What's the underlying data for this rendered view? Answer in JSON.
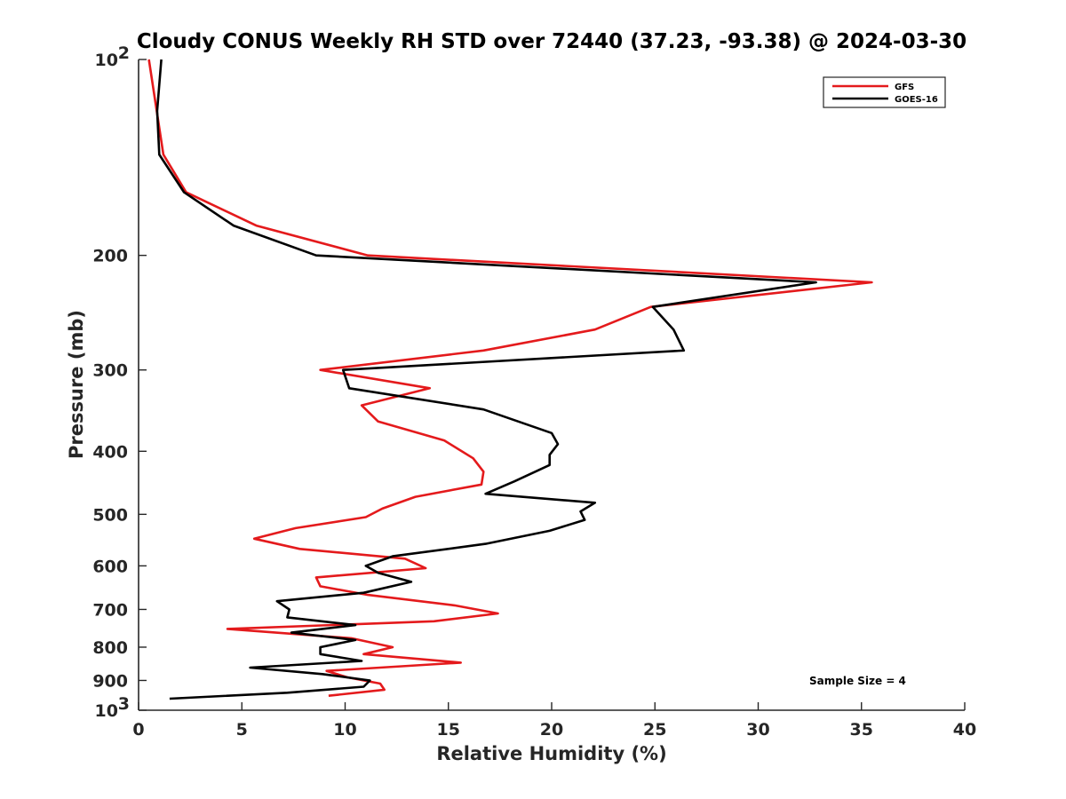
{
  "chart_data": {
    "type": "line",
    "title": "Cloudy CONUS Weekly RH STD over 72440 (37.23, -93.38) @ 2024-03-30",
    "xlabel": "Relative Humidity (%)",
    "ylabel": "Pressure (mb)",
    "xlim": [
      0,
      40
    ],
    "ylim": [
      100,
      1000
    ],
    "y_scale": "log",
    "y_reversed": true,
    "x_ticks": [
      0,
      5,
      10,
      15,
      20,
      25,
      30,
      35,
      40
    ],
    "y_ticks": [
      100,
      200,
      300,
      400,
      500,
      600,
      700,
      800,
      900,
      1000
    ],
    "y_tick_labels": {
      "100": "10",
      "1000": "10"
    },
    "y_tick_exponents": {
      "100": "2",
      "1000": "3"
    },
    "legend": {
      "position": "top-right",
      "entries": [
        "GFS",
        "GOES-16"
      ]
    },
    "annotation": "Sample Size = 4",
    "series": [
      {
        "name": "GFS",
        "color": "#e41a1c",
        "x": [
          0.5,
          1.2,
          2.3,
          5.7,
          11.1,
          35.5,
          24.8,
          22.1,
          16.7,
          8.8,
          14.1,
          10.8,
          11.6,
          14.8,
          16.2,
          16.7,
          16.6,
          13.4,
          11.8,
          11.0,
          7.6,
          5.6,
          7.8,
          12.9,
          13.9,
          8.6,
          8.8,
          11.1,
          15.3,
          17.4,
          14.3,
          4.3,
          10.3,
          12.3,
          10.9,
          15.6,
          9.1,
          10.1,
          11.7,
          11.9,
          9.2
        ],
        "y": [
          100,
          140,
          160,
          180,
          200,
          220,
          240,
          260,
          280,
          300,
          320,
          340,
          360,
          385,
          410,
          430,
          450,
          470,
          490,
          505,
          525,
          545,
          565,
          585,
          605,
          625,
          645,
          665,
          690,
          710,
          730,
          750,
          775,
          800,
          820,
          845,
          870,
          890,
          910,
          930,
          950
        ]
      },
      {
        "name": "GOES-16",
        "color": "#000000",
        "x": [
          1.1,
          0.9,
          1.0,
          2.2,
          4.6,
          8.6,
          32.8,
          24.9,
          25.9,
          26.4,
          9.9,
          10.2,
          16.7,
          20.0,
          20.3,
          19.9,
          19.9,
          18.2,
          16.8,
          22.1,
          21.4,
          21.6,
          19.9,
          16.8,
          12.3,
          11.0,
          11.6,
          13.2,
          10.9,
          6.7,
          7.3,
          7.2,
          10.5,
          7.4,
          10.5,
          8.8,
          8.8,
          10.8,
          5.4,
          8.9,
          11.2,
          10.9,
          7.2,
          1.5
        ],
        "y": [
          100,
          120,
          140,
          160,
          180,
          200,
          220,
          240,
          260,
          280,
          300,
          320,
          345,
          375,
          390,
          405,
          420,
          445,
          465,
          480,
          495,
          510,
          530,
          555,
          580,
          600,
          615,
          635,
          660,
          680,
          700,
          720,
          740,
          760,
          780,
          800,
          820,
          840,
          860,
          880,
          900,
          920,
          940,
          960
        ]
      }
    ]
  }
}
